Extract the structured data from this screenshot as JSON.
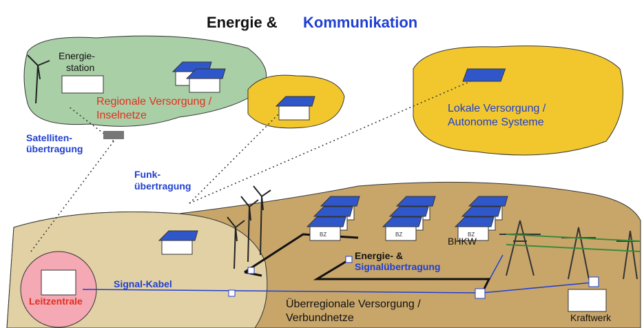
{
  "title": {
    "part1": "Energie &",
    "part2": "Kommunikation"
  },
  "regional": {
    "station": [
      "Energie-",
      "station"
    ],
    "label": [
      "Regionale Versorgung /",
      "Inselnetze"
    ]
  },
  "satellite": [
    "Satelliten-",
    "übertragung"
  ],
  "radio": [
    "Funk-",
    "übertragung"
  ],
  "local": [
    "Lokale Versorgung /",
    "Autonome Systeme"
  ],
  "grid": {
    "bz": "BZ",
    "bhkw": "BHKW",
    "transfer": [
      "Energie- &",
      "Signalübertragung"
    ],
    "cable": "Signal-Kabel",
    "control": "Leitzentrale",
    "label": [
      "Überregionale Versorgung /",
      "Verbundnetze"
    ],
    "plant": "Kraftwerk"
  }
}
